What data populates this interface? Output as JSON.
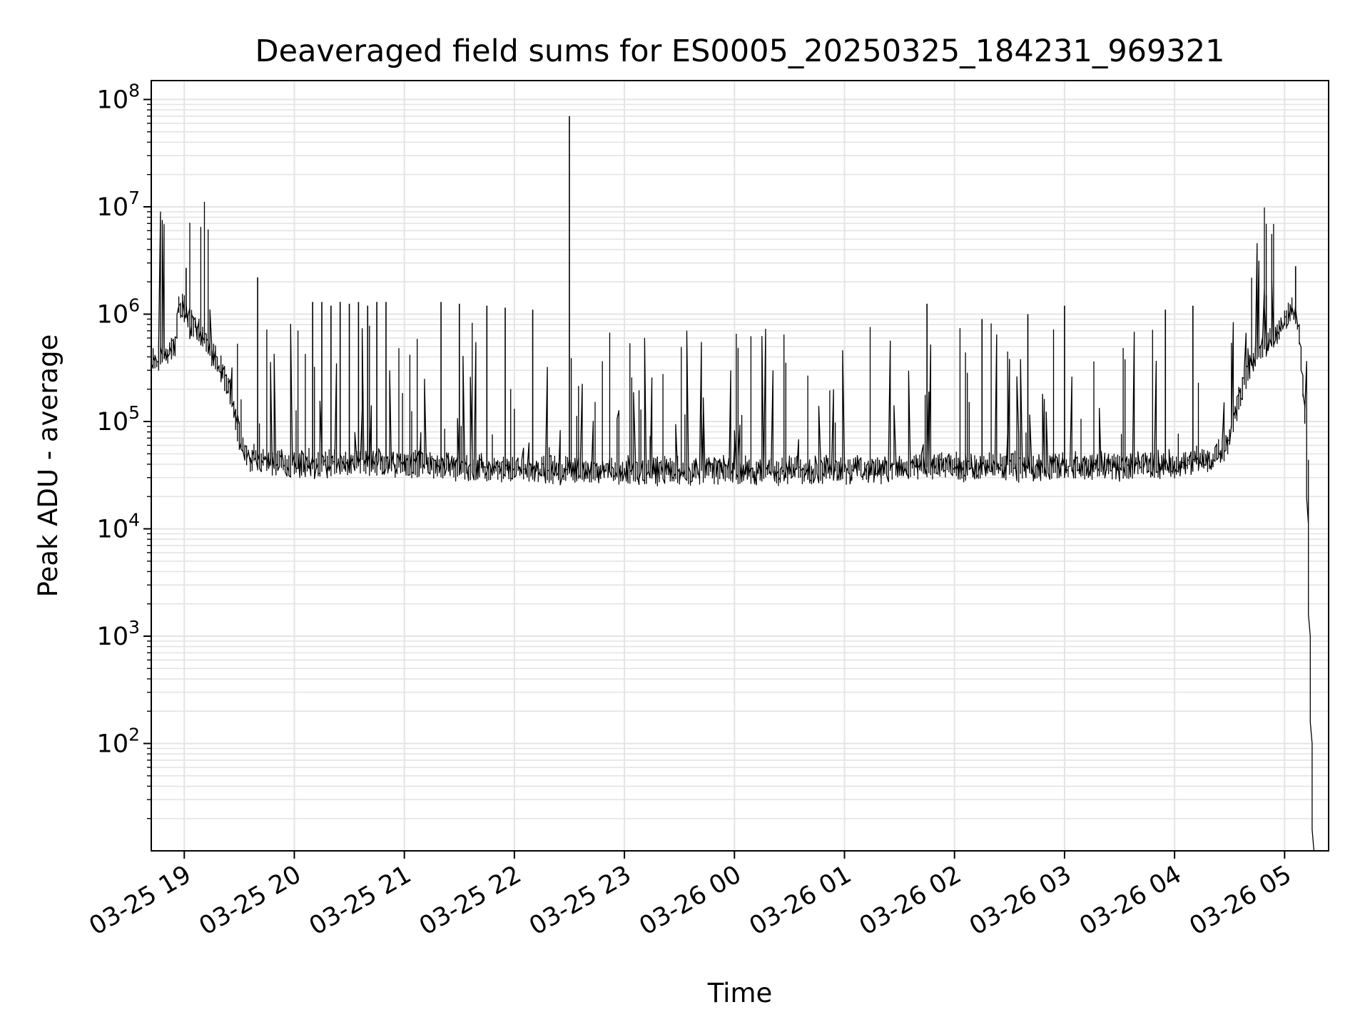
{
  "chart_data": {
    "type": "line",
    "title": "Deaveraged field sums for ES0005_20250325_184231_969321",
    "xlabel": "Time",
    "ylabel": "Peak ADU - average",
    "yscale": "log",
    "ylim": [
      10,
      150000000
    ],
    "xlim": [
      "2025-03-25 18:42",
      "2025-03-26 05:24"
    ],
    "grid": true,
    "line_color": "#000000",
    "x_ticks": [
      {
        "at": "2025-03-25 19:00",
        "label": "03-25 19"
      },
      {
        "at": "2025-03-25 20:00",
        "label": "03-25 20"
      },
      {
        "at": "2025-03-25 21:00",
        "label": "03-25 21"
      },
      {
        "at": "2025-03-25 22:00",
        "label": "03-25 22"
      },
      {
        "at": "2025-03-25 23:00",
        "label": "03-25 23"
      },
      {
        "at": "2025-03-26 00:00",
        "label": "03-26 00"
      },
      {
        "at": "2025-03-26 01:00",
        "label": "03-26 01"
      },
      {
        "at": "2025-03-26 02:00",
        "label": "03-26 02"
      },
      {
        "at": "2025-03-26 03:00",
        "label": "03-26 03"
      },
      {
        "at": "2025-03-26 04:00",
        "label": "03-26 04"
      },
      {
        "at": "2025-03-26 05:00",
        "label": "03-26 05"
      }
    ],
    "y_ticks": [
      {
        "value": 100,
        "base": "10",
        "exp": "2"
      },
      {
        "value": 1000,
        "base": "10",
        "exp": "3"
      },
      {
        "value": 10000,
        "base": "10",
        "exp": "4"
      },
      {
        "value": 100000,
        "base": "10",
        "exp": "5"
      },
      {
        "value": 1000000,
        "base": "10",
        "exp": "6"
      },
      {
        "value": 10000000,
        "base": "10",
        "exp": "7"
      },
      {
        "value": 100000000,
        "base": "10",
        "exp": "8"
      }
    ],
    "baseline_series": [
      {
        "x": "2025-03-25 18:42",
        "y": 380000
      },
      {
        "x": "2025-03-25 18:50",
        "y": 420000
      },
      {
        "x": "2025-03-25 18:55",
        "y": 450000
      },
      {
        "x": "2025-03-25 18:57",
        "y": 1100000
      },
      {
        "x": "2025-03-25 19:00",
        "y": 1200000
      },
      {
        "x": "2025-03-25 19:04",
        "y": 800000
      },
      {
        "x": "2025-03-25 19:10",
        "y": 650000
      },
      {
        "x": "2025-03-25 19:15",
        "y": 420000
      },
      {
        "x": "2025-03-25 19:20",
        "y": 320000
      },
      {
        "x": "2025-03-25 19:25",
        "y": 200000
      },
      {
        "x": "2025-03-25 19:30",
        "y": 80000
      },
      {
        "x": "2025-03-25 19:35",
        "y": 45000
      },
      {
        "x": "2025-03-25 20:00",
        "y": 40000
      },
      {
        "x": "2025-03-25 21:00",
        "y": 42000
      },
      {
        "x": "2025-03-25 22:00",
        "y": 35000
      },
      {
        "x": "2025-03-25 23:00",
        "y": 35000
      },
      {
        "x": "2025-03-26 00:00",
        "y": 35000
      },
      {
        "x": "2025-03-26 01:00",
        "y": 36000
      },
      {
        "x": "2025-03-26 02:00",
        "y": 38000
      },
      {
        "x": "2025-03-26 03:00",
        "y": 38000
      },
      {
        "x": "2025-03-26 04:00",
        "y": 40000
      },
      {
        "x": "2025-03-26 04:20",
        "y": 45000
      },
      {
        "x": "2025-03-26 04:30",
        "y": 65000
      },
      {
        "x": "2025-03-26 04:35",
        "y": 150000
      },
      {
        "x": "2025-03-26 04:40",
        "y": 300000
      },
      {
        "x": "2025-03-26 04:50",
        "y": 500000
      },
      {
        "x": "2025-03-26 05:00",
        "y": 800000
      },
      {
        "x": "2025-03-26 05:05",
        "y": 1150000
      },
      {
        "x": "2025-03-26 05:08",
        "y": 800000
      },
      {
        "x": "2025-03-26 05:12",
        "y": 100000
      },
      {
        "x": "2025-03-26 05:16",
        "y": 10
      }
    ],
    "spikes": [
      {
        "x": "2025-03-25 19:01",
        "y": 2700000
      },
      {
        "x": "2025-03-25 19:40",
        "y": 2200000
      },
      {
        "x": "2025-03-25 20:10",
        "y": 1300000
      },
      {
        "x": "2025-03-25 20:15",
        "y": 1300000
      },
      {
        "x": "2025-03-25 20:20",
        "y": 1200000
      },
      {
        "x": "2025-03-25 20:25",
        "y": 1300000
      },
      {
        "x": "2025-03-25 20:30",
        "y": 1250000
      },
      {
        "x": "2025-03-25 20:35",
        "y": 1300000
      },
      {
        "x": "2025-03-25 20:40",
        "y": 1200000
      },
      {
        "x": "2025-03-25 20:45",
        "y": 1300000
      },
      {
        "x": "2025-03-25 20:50",
        "y": 1300000
      },
      {
        "x": "2025-03-25 21:20",
        "y": 1300000
      },
      {
        "x": "2025-03-25 21:30",
        "y": 1250000
      },
      {
        "x": "2025-03-25 21:45",
        "y": 1200000
      },
      {
        "x": "2025-03-25 21:55",
        "y": 1150000
      },
      {
        "x": "2025-03-25 22:10",
        "y": 1100000
      },
      {
        "x": "2025-03-25 22:30",
        "y": 70000000
      },
      {
        "x": "2025-03-26 01:45",
        "y": 1250000
      },
      {
        "x": "2025-03-26 02:15",
        "y": 900000
      },
      {
        "x": "2025-03-26 02:40",
        "y": 1000000
      },
      {
        "x": "2025-03-26 03:00",
        "y": 1200000
      },
      {
        "x": "2025-03-26 03:55",
        "y": 1100000
      },
      {
        "x": "2025-03-26 04:10",
        "y": 1200000
      },
      {
        "x": "2025-03-26 04:50",
        "y": 1500000
      },
      {
        "x": "2025-03-26 05:06",
        "y": 2800000
      }
    ]
  }
}
